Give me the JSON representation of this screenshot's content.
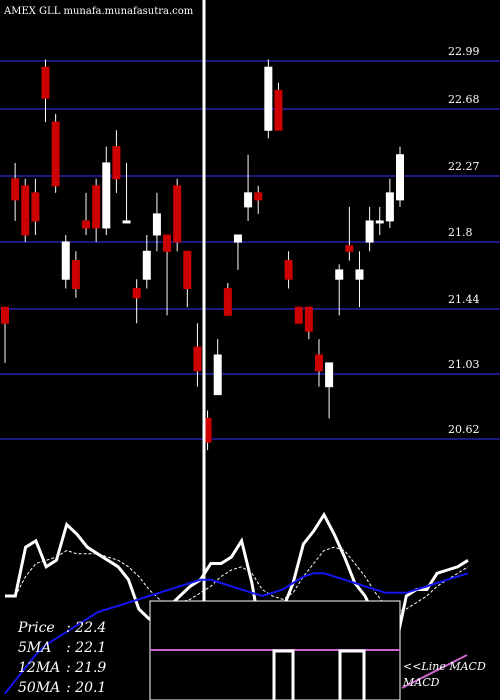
{
  "header": {
    "title": "AMEX  GLL munafa.munafasutra.com"
  },
  "colors": {
    "background": "#000000",
    "grid": "#1a1a80",
    "up_candle": "#ffffff",
    "down_candle": "#cc0000",
    "price_line": "#ffffff",
    "ma_short": "#ffffff",
    "ma_long": "#1515ee",
    "macd_line": "#cc66cc",
    "text": "#ffffff"
  },
  "chart_data": [
    {
      "type": "candlestick",
      "title": "AMEX  GLL munafa.munafasutra.com",
      "price_levels": [
        22.99,
        22.68,
        22.27,
        21.8,
        21.44,
        21.03,
        20.62
      ],
      "ylim": [
        20.55,
        23.15
      ],
      "grid": true,
      "candles": [
        {
          "open": 21.45,
          "close": 21.35,
          "high": 21.45,
          "low": 21.1
        },
        {
          "open": 22.25,
          "close": 22.1,
          "high": 22.35,
          "low": 21.95
        },
        {
          "open": 22.2,
          "close": 21.85,
          "high": 22.25,
          "low": 21.8
        },
        {
          "open": 22.15,
          "close": 21.95,
          "high": 22.25,
          "low": 21.85
        },
        {
          "open": 22.95,
          "close": 22.75,
          "high": 23.0,
          "low": 22.6
        },
        {
          "open": 22.6,
          "close": 22.2,
          "high": 22.65,
          "low": 22.15
        },
        {
          "open": 21.6,
          "close": 21.8,
          "high": 21.85,
          "low": 21.55
        },
        {
          "open": 21.7,
          "close": 21.55,
          "high": 21.75,
          "low": 21.5
        },
        {
          "open": 21.95,
          "close": 21.9,
          "high": 22.15,
          "low": 21.85
        },
        {
          "open": 22.2,
          "close": 21.9,
          "high": 22.25,
          "low": 21.8
        },
        {
          "open": 21.9,
          "close": 22.35,
          "high": 22.45,
          "low": 21.85
        },
        {
          "open": 22.45,
          "close": 22.25,
          "high": 22.55,
          "low": 22.15
        },
        {
          "open": 21.95,
          "close": 21.95,
          "high": 22.35,
          "low": 21.95
        },
        {
          "open": 21.55,
          "close": 21.5,
          "high": 21.6,
          "low": 21.35
        },
        {
          "open": 21.6,
          "close": 21.75,
          "high": 21.85,
          "low": 21.55
        },
        {
          "open": 21.85,
          "close": 22.0,
          "high": 22.15,
          "low": 21.75
        },
        {
          "open": 21.85,
          "close": 21.75,
          "high": 21.85,
          "low": 21.4
        },
        {
          "open": 22.2,
          "close": 21.8,
          "high": 22.25,
          "low": 21.75
        },
        {
          "open": 21.75,
          "close": 21.55,
          "high": 21.75,
          "low": 21.45
        },
        {
          "open": 21.2,
          "close": 21.05,
          "high": 21.35,
          "low": 20.95
        },
        {
          "open": 20.75,
          "close": 20.6,
          "high": 20.8,
          "low": 20.55
        },
        {
          "open": 20.9,
          "close": 21.15,
          "high": 21.25,
          "low": 20.9
        },
        {
          "open": 21.55,
          "close": 21.4,
          "high": 21.58,
          "low": 21.4
        },
        {
          "open": 21.8,
          "close": 21.85,
          "high": 21.85,
          "low": 21.65
        },
        {
          "open": 22.05,
          "close": 22.15,
          "high": 22.4,
          "low": 21.95
        },
        {
          "open": 22.15,
          "close": 22.1,
          "high": 22.2,
          "low": 22.0
        },
        {
          "open": 22.55,
          "close": 22.95,
          "high": 23.0,
          "low": 22.5
        },
        {
          "open": 22.8,
          "close": 22.55,
          "high": 22.85,
          "low": 22.55
        },
        {
          "open": 21.7,
          "close": 21.6,
          "high": 21.75,
          "low": 21.55
        },
        {
          "open": 21.45,
          "close": 21.35,
          "high": 21.45,
          "low": 21.35
        },
        {
          "open": 21.45,
          "close": 21.3,
          "high": 21.45,
          "low": 21.25
        },
        {
          "open": 21.15,
          "close": 21.05,
          "high": 21.25,
          "low": 20.95
        },
        {
          "open": 20.95,
          "close": 21.1,
          "high": 21.1,
          "low": 20.75
        },
        {
          "open": 21.6,
          "close": 21.65,
          "high": 21.68,
          "low": 21.4
        },
        {
          "open": 21.78,
          "close": 21.75,
          "high": 22.05,
          "low": 21.7
        },
        {
          "open": 21.6,
          "close": 21.65,
          "high": 21.75,
          "low": 21.45
        },
        {
          "open": 21.8,
          "close": 21.95,
          "high": 22.05,
          "low": 21.75
        },
        {
          "open": 21.95,
          "close": 21.95,
          "high": 22.05,
          "low": 21.85
        },
        {
          "open": 21.95,
          "close": 22.15,
          "high": 22.25,
          "low": 21.9
        },
        {
          "open": 22.1,
          "close": 22.4,
          "high": 22.45,
          "low": 22.05
        }
      ]
    },
    {
      "type": "line",
      "series": [
        {
          "name": "Price",
          "values": [
            20.1,
            20.1,
            20.85,
            20.95,
            20.55,
            20.65,
            21.2,
            21.05,
            20.85,
            20.75,
            20.65,
            20.55,
            20.35,
            19.9,
            19.75,
            19.8,
            19.95,
            20.1,
            20.25,
            20.35,
            20.6,
            20.6,
            20.7,
            20.95,
            20.3,
            19.4,
            19.7,
            19.9,
            20.3,
            20.9,
            21.1,
            21.35,
            21.05,
            20.7,
            20.3,
            20.1,
            19.75,
            19.4,
            19.35,
            20.1,
            20.2,
            20.2,
            20.45,
            20.5,
            20.55,
            20.65
          ]
        },
        {
          "name": "5MA",
          "values": [
            20.1,
            20.1,
            20.4,
            20.6,
            20.65,
            20.7,
            20.8,
            20.75,
            20.75,
            20.75,
            20.7,
            20.65,
            20.55,
            20.4,
            20.2,
            20.05,
            19.95,
            20.0,
            20.05,
            20.15,
            20.25,
            20.4,
            20.5,
            20.55,
            20.45,
            20.2,
            20.1,
            20.05,
            20.15,
            20.4,
            20.6,
            20.8,
            20.85,
            20.8,
            20.6,
            20.4,
            20.15,
            19.95,
            19.85,
            19.9,
            20.0,
            20.1,
            20.25,
            20.35,
            20.45,
            20.55
          ]
        },
        {
          "name": "12MA",
          "values": [
            18.6,
            18.8,
            19.0,
            19.2,
            19.35,
            19.45,
            19.55,
            19.65,
            19.75,
            19.85,
            19.9,
            19.95,
            20.0,
            20.05,
            20.1,
            20.15,
            20.2,
            20.25,
            20.3,
            20.35,
            20.35,
            20.3,
            20.25,
            20.2,
            20.15,
            20.1,
            20.15,
            20.2,
            20.3,
            20.4,
            20.45,
            20.45,
            20.4,
            20.35,
            20.3,
            20.25,
            20.2,
            20.15,
            20.15,
            20.15,
            20.2,
            20.25,
            20.3,
            20.35,
            20.4,
            20.45
          ]
        }
      ],
      "legend": [
        {
          "label": "Price",
          "value": "22.4"
        },
        {
          "label": "5MA",
          "value": "22.1"
        },
        {
          "label": "12MA",
          "value": "21.9"
        },
        {
          "label": "50MA",
          "value": "20.1"
        }
      ]
    },
    {
      "type": "line",
      "series": [
        {
          "name": "MACD",
          "values": [
            -0.8,
            -0.7,
            -0.6,
            -0.5,
            -0.4,
            -0.3
          ]
        }
      ],
      "label": "<<Line MACD"
    }
  ]
}
